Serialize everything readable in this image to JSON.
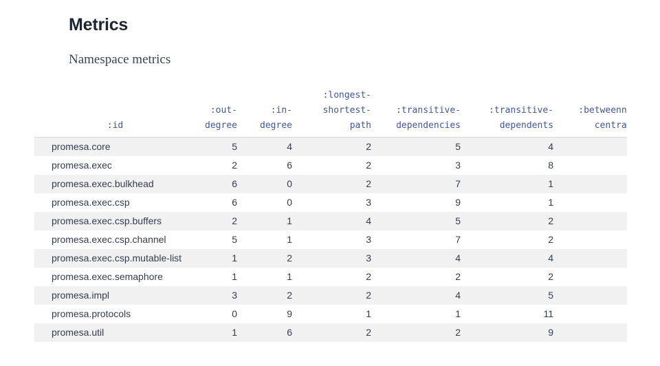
{
  "page": {
    "title": "Metrics",
    "subtitle": "Namespace metrics"
  },
  "table": {
    "columns": [
      {
        "name": "id",
        "label_lines": [
          ":id"
        ],
        "align": "left",
        "header_align": "center"
      },
      {
        "name": "out-degree",
        "label_lines": [
          ":out-",
          "degree"
        ],
        "align": "right",
        "header_align": "right"
      },
      {
        "name": "in-degree",
        "label_lines": [
          ":in-",
          "degree"
        ],
        "align": "right",
        "header_align": "right"
      },
      {
        "name": "longest-shortest-path",
        "label_lines": [
          ":longest-",
          "shortest-",
          "path"
        ],
        "align": "right",
        "header_align": "right"
      },
      {
        "name": "transitive-dependencies",
        "label_lines": [
          ":transitive-",
          "dependencies"
        ],
        "align": "right",
        "header_align": "right"
      },
      {
        "name": "transitive-dependents",
        "label_lines": [
          ":transitive-",
          "dependents"
        ],
        "align": "right",
        "header_align": "right"
      },
      {
        "name": "betweenness-centrality",
        "label_lines": [
          ":betweenness-",
          "centrality"
        ],
        "align": "right",
        "header_align": "right",
        "clipped": true
      }
    ],
    "rows": [
      {
        "id": "promesa.core",
        "values": [
          5,
          4,
          2,
          5,
          4
        ]
      },
      {
        "id": "promesa.exec",
        "values": [
          2,
          6,
          2,
          3,
          8
        ]
      },
      {
        "id": "promesa.exec.bulkhead",
        "values": [
          6,
          0,
          2,
          7,
          1
        ]
      },
      {
        "id": "promesa.exec.csp",
        "values": [
          6,
          0,
          3,
          9,
          1
        ]
      },
      {
        "id": "promesa.exec.csp.buffers",
        "values": [
          2,
          1,
          4,
          5,
          2
        ]
      },
      {
        "id": "promesa.exec.csp.channel",
        "values": [
          5,
          1,
          3,
          7,
          2
        ]
      },
      {
        "id": "promesa.exec.csp.mutable-list",
        "values": [
          1,
          2,
          3,
          4,
          4
        ]
      },
      {
        "id": "promesa.exec.semaphore",
        "values": [
          1,
          1,
          2,
          2,
          2
        ]
      },
      {
        "id": "promesa.impl",
        "values": [
          3,
          2,
          2,
          4,
          5
        ]
      },
      {
        "id": "promesa.protocols",
        "values": [
          0,
          9,
          1,
          1,
          11
        ]
      },
      {
        "id": "promesa.util",
        "values": [
          1,
          6,
          2,
          2,
          9
        ]
      }
    ]
  },
  "colors": {
    "title": "#1e2531",
    "subtitle": "#3b4351",
    "header_keyword": "#4356a0",
    "cell_text": "#343c4c",
    "row_stripe": "#f1f1f2",
    "header_border": "#d6d7da",
    "background": "#ffffff"
  }
}
